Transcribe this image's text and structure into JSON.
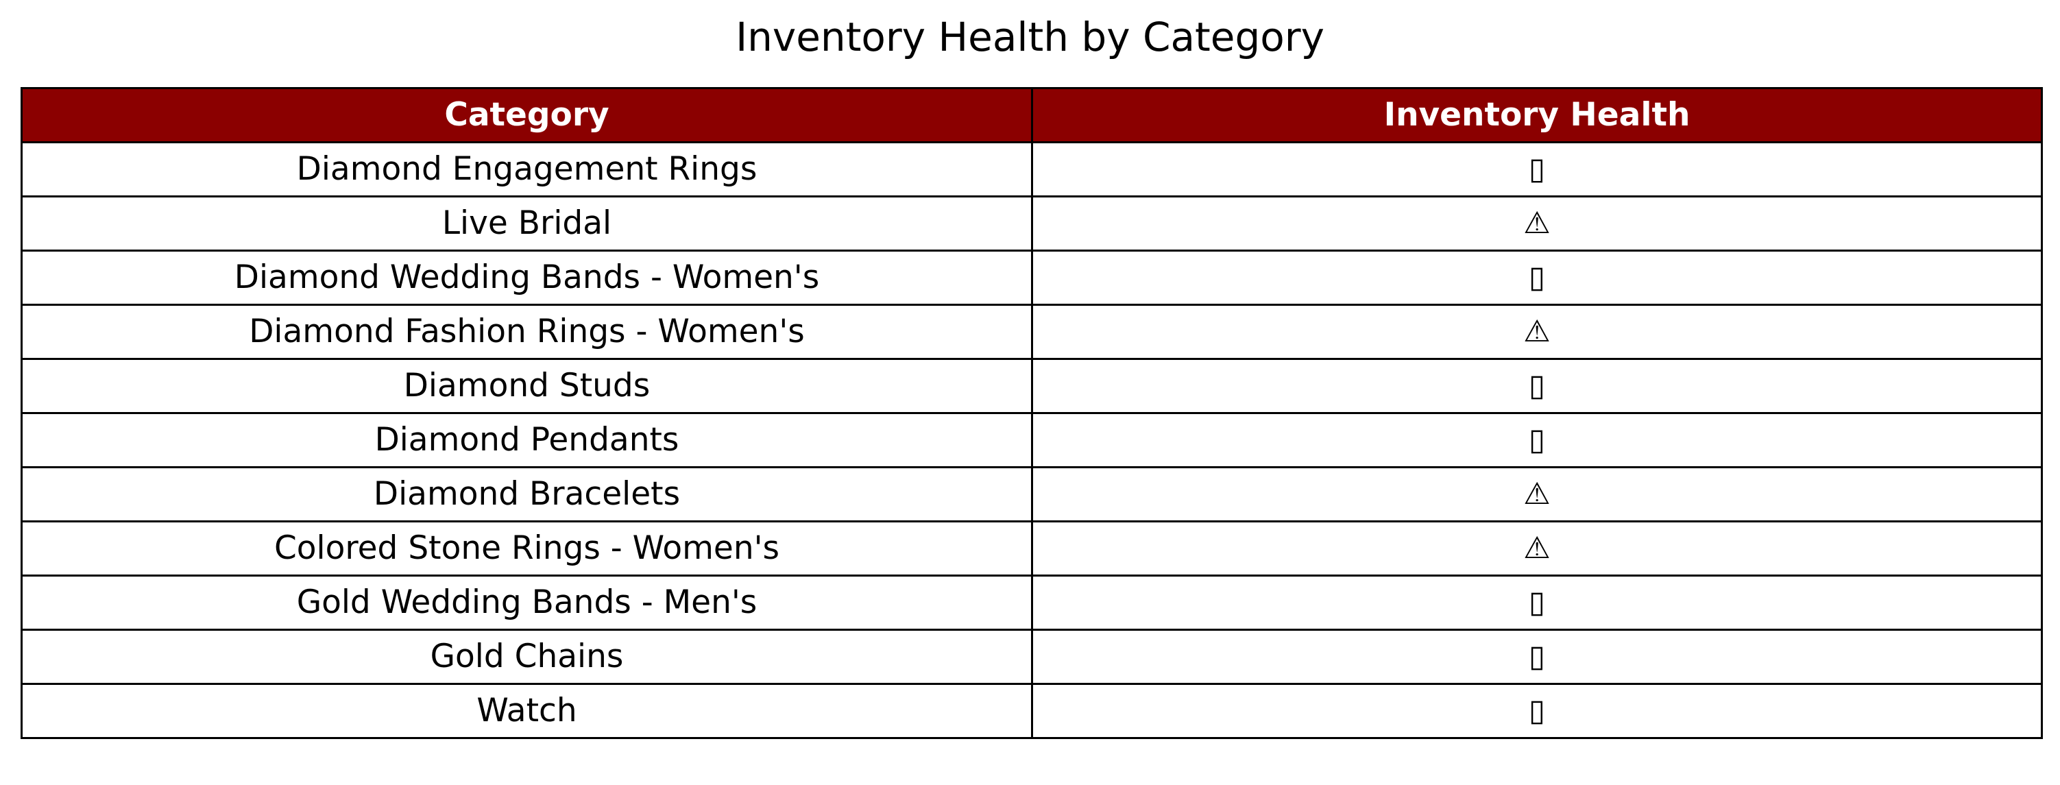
{
  "chart_data": {
    "type": "table",
    "title": "Inventory Health by Category",
    "header_color": "#8B0000",
    "header_text_color": "#FFFFFF",
    "columns": [
      "Category",
      "Inventory Health"
    ],
    "rows": [
      {
        "category": "Diamond Engagement Rings",
        "health": "▯"
      },
      {
        "category": "Live Bridal",
        "health": "⚠"
      },
      {
        "category": "Diamond Wedding Bands - Women's",
        "health": "▯"
      },
      {
        "category": "Diamond Fashion Rings - Women's",
        "health": "⚠"
      },
      {
        "category": "Diamond Studs",
        "health": "▯"
      },
      {
        "category": "Diamond Pendants",
        "health": "▯"
      },
      {
        "category": "Diamond Bracelets",
        "health": "⚠"
      },
      {
        "category": "Colored Stone Rings - Women's",
        "health": "⚠"
      },
      {
        "category": "Gold Wedding Bands - Men's",
        "health": "▯"
      },
      {
        "category": "Gold Chains",
        "health": "▯"
      },
      {
        "category": "Watch",
        "health": "▯"
      }
    ]
  }
}
